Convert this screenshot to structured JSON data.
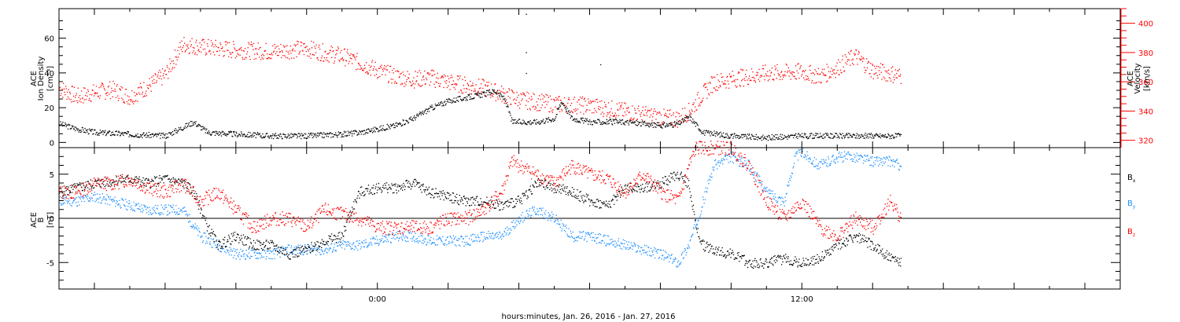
{
  "x_axis": {
    "label": "hours:minutes, Jan. 26, 2016 - Jan. 27, 2016",
    "range_hours": [
      -9,
      21
    ],
    "tick_labels": [
      {
        "hour": 0,
        "text": "0:00"
      },
      {
        "hour": 12,
        "text": "12:00"
      }
    ],
    "data_end_hour": 14.8
  },
  "colors": {
    "black": "#000000",
    "red": "#ff0000",
    "blue": "#1e90ff"
  },
  "chart_data": [
    {
      "type": "scatter",
      "left_axis": {
        "label_lines": [
          "ACE",
          "Ion Density",
          "[cm⁻³]"
        ],
        "ylim": [
          -3,
          77
        ],
        "ticks": [
          0,
          20,
          40,
          60
        ]
      },
      "right_axis": {
        "label_lines": [
          "ACE",
          "Velocity",
          "[km/s]"
        ],
        "ylim": [
          315,
          410
        ],
        "ticks": [
          320,
          340,
          360,
          380,
          400
        ]
      },
      "series": [
        {
          "key": "density",
          "color": "black",
          "axis": "left",
          "points": [
            [
              -9,
              11
            ],
            [
              -8.5,
              8
            ],
            [
              -8,
              6
            ],
            [
              -7,
              5
            ],
            [
              -6,
              4
            ],
            [
              -5.7,
              7
            ],
            [
              -5.2,
              12
            ],
            [
              -4.8,
              6
            ],
            [
              -4,
              5
            ],
            [
              -3,
              4
            ],
            [
              -2,
              4
            ],
            [
              -1,
              5
            ],
            [
              -0.5,
              6
            ],
            [
              0,
              8
            ],
            [
              0.5,
              10
            ],
            [
              1,
              14
            ],
            [
              1.5,
              20
            ],
            [
              2,
              24
            ],
            [
              2.5,
              26
            ],
            [
              3,
              28
            ],
            [
              3.3,
              30
            ],
            [
              3.6,
              25
            ],
            [
              3.8,
              12
            ],
            [
              4.5,
              12
            ],
            [
              5,
              14
            ],
            [
              5.2,
              24
            ],
            [
              5.5,
              14
            ],
            [
              6,
              12
            ],
            [
              7,
              12
            ],
            [
              8,
              10
            ],
            [
              8.5,
              11
            ],
            [
              8.8,
              15
            ],
            [
              9.2,
              6
            ],
            [
              10,
              4
            ],
            [
              11,
              3
            ],
            [
              12,
              4
            ],
            [
              13,
              4
            ],
            [
              14,
              4
            ],
            [
              14.8,
              4
            ]
          ]
        },
        {
          "key": "velocity",
          "color": "red",
          "axis": "right",
          "points": [
            [
              -9,
              356
            ],
            [
              -8.5,
              350
            ],
            [
              -8,
              353
            ],
            [
              -7.5,
              355
            ],
            [
              -7,
              350
            ],
            [
              -6.5,
              357
            ],
            [
              -6,
              365
            ],
            [
              -5.7,
              378
            ],
            [
              -5.5,
              386
            ],
            [
              -5,
              384
            ],
            [
              -4,
              382
            ],
            [
              -3,
              381
            ],
            [
              -2,
              383
            ],
            [
              -1.5,
              380
            ],
            [
              -1,
              378
            ],
            [
              -0.5,
              373
            ],
            [
              0,
              368
            ],
            [
              0.5,
              364
            ],
            [
              1,
              362
            ],
            [
              1.5,
              363
            ],
            [
              2,
              360
            ],
            [
              2.5,
              358
            ],
            [
              3,
              356
            ],
            [
              3.5,
              352
            ],
            [
              4,
              348
            ],
            [
              5,
              345
            ],
            [
              6,
              344
            ],
            [
              6.5,
              342
            ],
            [
              7,
              340
            ],
            [
              7.5,
              338
            ],
            [
              8,
              336
            ],
            [
              8.5,
              335
            ],
            [
              8.8,
              340
            ],
            [
              9.2,
              352
            ],
            [
              9.5,
              360
            ],
            [
              10,
              362
            ],
            [
              11,
              366
            ],
            [
              12,
              367
            ],
            [
              12.5,
              364
            ],
            [
              13,
              370
            ],
            [
              13.5,
              378
            ],
            [
              14,
              368
            ],
            [
              14.5,
              366
            ],
            [
              14.8,
              364
            ]
          ]
        }
      ]
    },
    {
      "type": "scatter",
      "left_axis": {
        "label_lines": [
          "ACE",
          "B",
          "[nT]"
        ],
        "ylim": [
          -8,
          8
        ],
        "ticks": [
          -5,
          0,
          5
        ]
      },
      "legend": [
        "Bx",
        "By",
        "Bz"
      ],
      "series": [
        {
          "key": "Bx",
          "color": "black",
          "points": [
            [
              -9,
              3
            ],
            [
              -8.5,
              3.5
            ],
            [
              -8,
              4
            ],
            [
              -7,
              4.5
            ],
            [
              -6.5,
              4
            ],
            [
              -6,
              4.5
            ],
            [
              -5.5,
              4
            ],
            [
              -5.2,
              3
            ],
            [
              -4.8,
              -1
            ],
            [
              -4.5,
              -3
            ],
            [
              -4,
              -2
            ],
            [
              -3.5,
              -3
            ],
            [
              -3,
              -3
            ],
            [
              -2.5,
              -4
            ],
            [
              -2,
              -3.5
            ],
            [
              -1.5,
              -2.5
            ],
            [
              -1,
              -2
            ],
            [
              -0.8,
              0.5
            ],
            [
              -0.5,
              3
            ],
            [
              0,
              3.5
            ],
            [
              0.5,
              3.5
            ],
            [
              1,
              4
            ],
            [
              1.5,
              3
            ],
            [
              2,
              2.5
            ],
            [
              2.5,
              2
            ],
            [
              3,
              2
            ],
            [
              3.5,
              1.5
            ],
            [
              4,
              2
            ],
            [
              4.5,
              4
            ],
            [
              5,
              3.5
            ],
            [
              5.5,
              3
            ],
            [
              6,
              2
            ],
            [
              6.5,
              1.5
            ],
            [
              7,
              3.5
            ],
            [
              7.5,
              3.5
            ],
            [
              8,
              4
            ],
            [
              8.5,
              5
            ],
            [
              8.8,
              4
            ],
            [
              9,
              -1
            ],
            [
              9.2,
              -3
            ],
            [
              9.5,
              -3.5
            ],
            [
              10,
              -4
            ],
            [
              10.5,
              -5
            ],
            [
              11,
              -5
            ],
            [
              11.5,
              -4.5
            ],
            [
              12,
              -5
            ],
            [
              12.5,
              -4.5
            ],
            [
              13,
              -3
            ],
            [
              13.5,
              -2
            ],
            [
              14,
              -3
            ],
            [
              14.5,
              -4.5
            ],
            [
              14.8,
              -5
            ]
          ]
        },
        {
          "key": "By",
          "color": "blue",
          "points": [
            [
              -9,
              2
            ],
            [
              -8.5,
              2
            ],
            [
              -8,
              2.5
            ],
            [
              -7.5,
              2
            ],
            [
              -7,
              1.5
            ],
            [
              -6.5,
              1
            ],
            [
              -6,
              1
            ],
            [
              -5.5,
              1
            ],
            [
              -5,
              -2
            ],
            [
              -4.5,
              -3
            ],
            [
              -4,
              -4
            ],
            [
              -3.5,
              -4
            ],
            [
              -3,
              -4
            ],
            [
              -2.5,
              -3.5
            ],
            [
              -2,
              -3.5
            ],
            [
              -1.5,
              -3.5
            ],
            [
              -1,
              -3
            ],
            [
              -0.5,
              -3
            ],
            [
              0,
              -2.5
            ],
            [
              0.5,
              -2
            ],
            [
              1,
              -2
            ],
            [
              1.5,
              -2.5
            ],
            [
              2,
              -2.5
            ],
            [
              2.5,
              -2.5
            ],
            [
              3,
              -2
            ],
            [
              3.5,
              -2
            ],
            [
              4,
              0
            ],
            [
              4.5,
              1
            ],
            [
              5,
              0
            ],
            [
              5.5,
              -2
            ],
            [
              6,
              -2
            ],
            [
              6.5,
              -2.5
            ],
            [
              7,
              -3
            ],
            [
              7.5,
              -3.5
            ],
            [
              8,
              -4
            ],
            [
              8.5,
              -5
            ],
            [
              8.8,
              -3
            ],
            [
              9.2,
              2
            ],
            [
              9.5,
              6
            ],
            [
              10,
              7
            ],
            [
              10.5,
              6
            ],
            [
              11,
              3
            ],
            [
              11.5,
              2
            ],
            [
              11.8,
              7
            ],
            [
              12,
              7.5
            ],
            [
              12.5,
              6
            ],
            [
              13,
              7
            ],
            [
              13.5,
              7
            ],
            [
              14,
              6.5
            ],
            [
              14.5,
              6.5
            ],
            [
              14.8,
              6
            ]
          ]
        },
        {
          "key": "Bz",
          "color": "red",
          "points": [
            [
              -9,
              3
            ],
            [
              -8.5,
              3
            ],
            [
              -8,
              4
            ],
            [
              -7.5,
              4
            ],
            [
              -7,
              4.5
            ],
            [
              -6.5,
              3.5
            ],
            [
              -6,
              3
            ],
            [
              -5.5,
              4
            ],
            [
              -5,
              2
            ],
            [
              -4.5,
              3
            ],
            [
              -4,
              1
            ],
            [
              -3.5,
              -1
            ],
            [
              -3,
              0
            ],
            [
              -2.5,
              0
            ],
            [
              -2,
              -1
            ],
            [
              -1.5,
              1
            ],
            [
              -1,
              0.5
            ],
            [
              -0.5,
              0
            ],
            [
              0,
              -1
            ],
            [
              0.5,
              -1
            ],
            [
              1,
              -1
            ],
            [
              1.5,
              -1
            ],
            [
              2,
              0
            ],
            [
              2.5,
              0
            ],
            [
              3,
              1
            ],
            [
              3.5,
              3
            ],
            [
              3.8,
              6.5
            ],
            [
              4,
              6
            ],
            [
              4.5,
              5
            ],
            [
              5,
              4
            ],
            [
              5.5,
              6
            ],
            [
              6,
              5
            ],
            [
              6.5,
              4.5
            ],
            [
              7,
              3
            ],
            [
              7.5,
              5
            ],
            [
              8,
              3
            ],
            [
              8.5,
              2
            ],
            [
              8.8,
              6
            ],
            [
              9,
              8
            ],
            [
              9.5,
              8
            ],
            [
              10,
              8
            ],
            [
              10.5,
              6
            ],
            [
              11,
              2
            ],
            [
              11.5,
              0
            ],
            [
              12,
              2
            ],
            [
              12.5,
              -1
            ],
            [
              13,
              -2
            ],
            [
              13.5,
              0
            ],
            [
              14,
              -1
            ],
            [
              14.5,
              2
            ],
            [
              14.8,
              0
            ]
          ]
        }
      ]
    }
  ]
}
